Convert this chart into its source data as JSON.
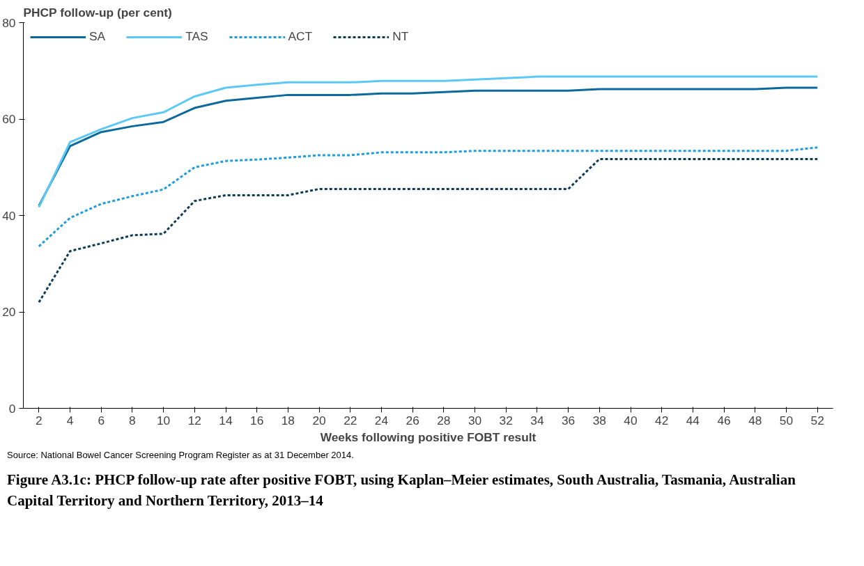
{
  "chart_data": {
    "type": "line",
    "title": "Figure A3.1c: PHCP follow-up rate after positive FOBT, using Kaplan–Meier estimates, South Australia, Tasmania, Australian Capital Territory and Northern Territory, 2013–14",
    "ylabel": "PHCP follow-up (per cent)",
    "xlabel": "Weeks following positive FOBT result",
    "annotations": [
      "Source: National Bowel Cancer Screening Program Register as at 31 December 2014."
    ],
    "x": [
      2,
      4,
      6,
      8,
      10,
      12,
      14,
      16,
      18,
      20,
      22,
      24,
      26,
      28,
      30,
      32,
      34,
      36,
      38,
      40,
      42,
      44,
      46,
      48,
      50,
      52
    ],
    "series": [
      {
        "name": "SA",
        "color": "#0b6a9b",
        "line_style": "solid",
        "values": [
          42,
          54.4,
          57.3,
          58.5,
          59.4,
          62.3,
          63.8,
          64.4,
          65,
          65,
          65,
          65.3,
          65.3,
          65.6,
          65.9,
          65.9,
          65.9,
          65.9,
          66.2,
          66.2,
          66.2,
          66.2,
          66.2,
          66.2,
          66.5,
          66.5
        ]
      },
      {
        "name": "TAS",
        "color": "#5cc8f5",
        "line_style": "solid",
        "values": [
          41.7,
          55.2,
          57.9,
          60.2,
          61.4,
          64.7,
          66.5,
          67.1,
          67.6,
          67.6,
          67.6,
          67.9,
          67.9,
          67.9,
          68.2,
          68.5,
          68.8,
          68.8,
          68.8,
          68.8,
          68.8,
          68.8,
          68.8,
          68.8,
          68.8,
          68.8
        ]
      },
      {
        "name": "ACT",
        "color": "#1b9de0",
        "line_style": "dashed",
        "values": [
          33.6,
          39.5,
          42.4,
          44,
          45.4,
          50,
          51.3,
          51.6,
          52,
          52.5,
          52.5,
          53.1,
          53.1,
          53.1,
          53.4,
          53.4,
          53.4,
          53.4,
          53.4,
          53.4,
          53.4,
          53.4,
          53.4,
          53.4,
          53.4,
          54.1
        ]
      },
      {
        "name": "NT",
        "color": "#0d3b55",
        "line_style": "dashed",
        "values": [
          22,
          32.6,
          34.2,
          35.9,
          36.2,
          43,
          44.2,
          44.2,
          44.2,
          45.5,
          45.5,
          45.5,
          45.5,
          45.5,
          45.5,
          45.5,
          45.5,
          45.5,
          51.7,
          51.7,
          51.7,
          51.7,
          51.7,
          51.7,
          51.7,
          51.7
        ]
      }
    ],
    "xlim": [
      1,
      53
    ],
    "xticks": [
      2,
      4,
      6,
      8,
      10,
      12,
      14,
      16,
      18,
      20,
      22,
      24,
      26,
      28,
      30,
      32,
      34,
      36,
      38,
      40,
      42,
      44,
      46,
      48,
      50,
      52
    ],
    "ylim": [
      0,
      80
    ],
    "yticks": [
      0,
      20,
      40,
      60,
      80
    ],
    "grid": false,
    "legend": "top left",
    "marker": "none"
  }
}
